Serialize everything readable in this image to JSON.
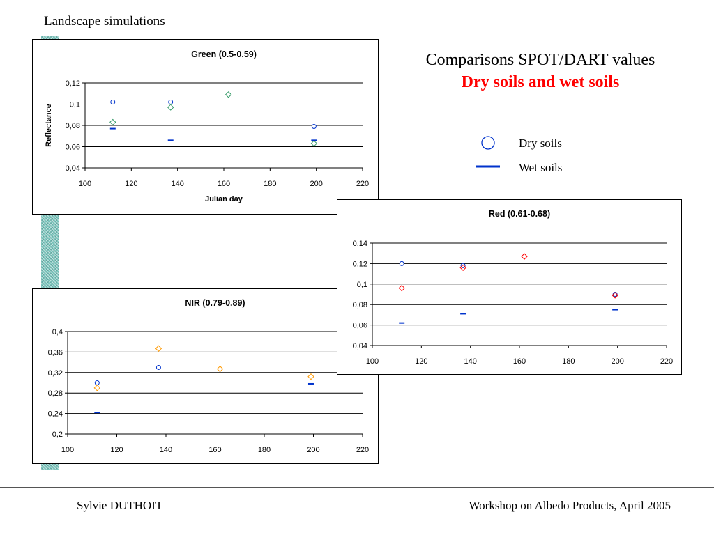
{
  "header": {
    "title": "Landscape simulations"
  },
  "slide_title": {
    "line1": "Comparisons SPOT/DART values",
    "line2": "Dry soils and wet soils"
  },
  "legend": {
    "items": [
      {
        "marker": "open-circle",
        "label": "Dry soils",
        "color": "#0033cc"
      },
      {
        "marker": "dash",
        "label": "Wet soils",
        "color": "#0033cc"
      }
    ]
  },
  "footer": {
    "left": "Sylvie DUTHOIT",
    "right": "Workshop on Albedo Products, April 2005"
  },
  "colors": {
    "dry": "#0033cc",
    "wet": "#0033cc",
    "green_sim": "#339966",
    "red_sim": "#ff0000",
    "nir_sim": "#ff9900"
  },
  "chart_data": [
    {
      "id": "green",
      "type": "scatter",
      "title": "Green (0.5-0.59)",
      "xlabel": "Julian day",
      "ylabel": "Reflectance",
      "xlim": [
        100,
        220
      ],
      "ylim": [
        0.04,
        0.12
      ],
      "xticks": [
        "100",
        "120",
        "140",
        "160",
        "180",
        "200",
        "220"
      ],
      "yticks": [
        "0,04",
        "0,06",
        "0,08",
        "0,1",
        "0,12"
      ],
      "grid": true,
      "series": [
        {
          "marker": "circle",
          "color": "#0033cc",
          "x": [
            112,
            137,
            199
          ],
          "y": [
            0.102,
            0.102,
            0.079
          ]
        },
        {
          "marker": "diamond",
          "color": "#339966",
          "x": [
            112,
            137,
            162,
            199
          ],
          "y": [
            0.083,
            0.097,
            0.109,
            0.063
          ]
        },
        {
          "marker": "dash",
          "color": "#0033cc",
          "x": [
            112,
            137,
            199
          ],
          "y": [
            0.077,
            0.066,
            0.066
          ]
        }
      ]
    },
    {
      "id": "red",
      "type": "scatter",
      "title": "Red (0.61-0.68)",
      "xlabel": "",
      "ylabel": "",
      "xlim": [
        100,
        220
      ],
      "ylim": [
        0.04,
        0.14
      ],
      "xticks": [
        "100",
        "120",
        "140",
        "160",
        "180",
        "200",
        "220"
      ],
      "yticks": [
        "0,04",
        "0,06",
        "0,08",
        "0,1",
        "0,12",
        "0,14"
      ],
      "grid": true,
      "series": [
        {
          "marker": "circle",
          "color": "#0033cc",
          "x": [
            112,
            137,
            199
          ],
          "y": [
            0.12,
            0.118,
            0.09
          ]
        },
        {
          "marker": "diamond",
          "color": "#ff0000",
          "x": [
            112,
            137,
            162,
            199
          ],
          "y": [
            0.096,
            0.116,
            0.127,
            0.089
          ]
        },
        {
          "marker": "dash",
          "color": "#0033cc",
          "x": [
            112,
            137,
            199
          ],
          "y": [
            0.062,
            0.071,
            0.075
          ]
        }
      ]
    },
    {
      "id": "nir",
      "type": "scatter",
      "title": "NIR (0.79-0.89)",
      "xlabel": "",
      "ylabel": "",
      "xlim": [
        100,
        220
      ],
      "ylim": [
        0.2,
        0.4
      ],
      "xticks": [
        "100",
        "120",
        "140",
        "160",
        "180",
        "200",
        "220"
      ],
      "yticks": [
        "0,2",
        "0,24",
        "0,28",
        "0,32",
        "0,36",
        "0,4"
      ],
      "grid": true,
      "series": [
        {
          "marker": "circle",
          "color": "#0033cc",
          "x": [
            112,
            137
          ],
          "y": [
            0.3,
            0.33
          ]
        },
        {
          "marker": "diamond",
          "color": "#ff9900",
          "x": [
            112,
            137,
            162,
            199
          ],
          "y": [
            0.29,
            0.367,
            0.327,
            0.312
          ]
        },
        {
          "marker": "dash",
          "color": "#0033cc",
          "x": [
            112,
            199
          ],
          "y": [
            0.242,
            0.298
          ]
        }
      ]
    }
  ]
}
